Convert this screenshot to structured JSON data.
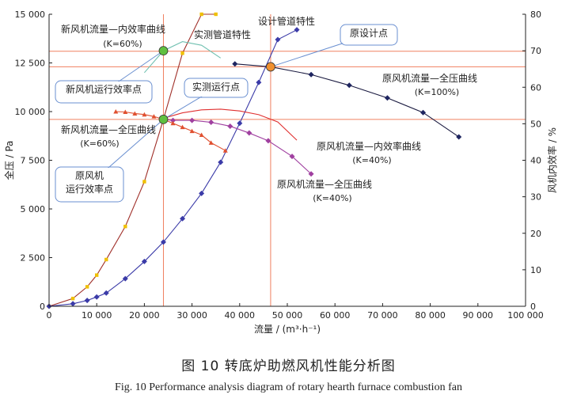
{
  "chart_data": {
    "type": "line",
    "title": "转底炉助燃风机性能分析图",
    "caption_cn": "图 10    转底炉助燃风机性能分析图",
    "caption_en": "Fig. 10    Performance analysis diagram of rotary hearth furnace combustion fan",
    "xlabel": "流量 / (m³·h⁻¹)",
    "ylabel_left": "全压 / Pa",
    "ylabel_right": "风机内效率 / %",
    "xlim": [
      0,
      100000
    ],
    "ylim_left": [
      0,
      15000
    ],
    "ylim_right": [
      0,
      80
    ],
    "x_ticks": [
      0,
      10000,
      20000,
      30000,
      40000,
      50000,
      60000,
      70000,
      80000,
      90000,
      100000
    ],
    "x_tick_labels": [
      "0",
      "10 000",
      "20 000",
      "30 000",
      "40 000",
      "50 000",
      "60 000",
      "70 000",
      "80 000",
      "90 000",
      "100 000"
    ],
    "y_left_ticks": [
      0,
      2500,
      5000,
      7500,
      10000,
      12500,
      15000
    ],
    "y_left_tick_labels": [
      "0",
      "2 500",
      "5 000",
      "7 500",
      "10 000",
      "12 500",
      "15 000"
    ],
    "y_right_ticks": [
      0,
      10,
      20,
      30,
      40,
      50,
      60,
      70,
      80
    ],
    "y_right_tick_labels": [
      "0",
      "10",
      "20",
      "30",
      "40",
      "50",
      "60",
      "70",
      "80"
    ],
    "series": [
      {
        "name": "实测管道特性",
        "axis": "left",
        "color": "#a0302a",
        "marker": "square",
        "marker_color": "#f0c000",
        "x": [
          0,
          5000,
          8000,
          10000,
          12000,
          16000,
          20000,
          24000,
          28000,
          32000,
          35000
        ],
        "y": [
          0,
          400,
          1000,
          1600,
          2400,
          4100,
          6400,
          9600,
          13000,
          15000,
          15000
        ]
      },
      {
        "name": "设计管道特性",
        "axis": "left",
        "color": "#3b3ba8",
        "marker": "diamond",
        "marker_color": "#3b3ba8",
        "x": [
          0,
          5000,
          8000,
          10000,
          12000,
          16000,
          20000,
          24000,
          28000,
          32000,
          36000,
          40000,
          44000,
          48000,
          52000
        ],
        "y": [
          0,
          130,
          300,
          480,
          680,
          1420,
          2300,
          3300,
          4500,
          5800,
          7400,
          9400,
          11500,
          13700,
          14200
        ]
      },
      {
        "name": "原风机流量—全压曲线 (K=100%)",
        "axis": "left",
        "color": "#1a1a40",
        "marker": "diamond",
        "marker_color": "#1e2560",
        "x": [
          39000,
          46500,
          55000,
          63000,
          71000,
          78500,
          86000
        ],
        "y": [
          12450,
          12300,
          11900,
          11350,
          10700,
          9950,
          8700
        ]
      },
      {
        "name": "原风机流量—全压曲线 (K=40%)",
        "axis": "left",
        "color": "#a040a0",
        "marker": "diamond",
        "marker_color": "#a040a0",
        "x": [
          24000,
          26000,
          30000,
          34000,
          38000,
          42000,
          46000,
          51000,
          55000
        ],
        "y": [
          9600,
          9550,
          9550,
          9450,
          9250,
          8900,
          8500,
          7700,
          6800
        ]
      },
      {
        "name": "新风机流量—全压曲线 (K=60%)",
        "axis": "left",
        "color": "#e05030",
        "marker": "triangle",
        "marker_color": "#e05030",
        "x": [
          14000,
          16000,
          18000,
          20000,
          22000,
          24000,
          26000,
          28000,
          30000,
          32000,
          34000,
          37000
        ],
        "y": [
          10000,
          9980,
          9900,
          9850,
          9750,
          9600,
          9400,
          9200,
          9000,
          8800,
          8400,
          8000
        ]
      },
      {
        "name": "原风机流量—内效率曲线 (K=40%)",
        "axis": "right",
        "color": "#e03030",
        "marker": "none",
        "marker_color": "#e03030",
        "x": [
          24000,
          28000,
          32000,
          36000,
          40000,
          44000,
          48000,
          52000
        ],
        "y": [
          51.5,
          53,
          53.8,
          54,
          53.5,
          52.5,
          50.5,
          45.5
        ]
      },
      {
        "name": "新风机流量—内效率曲线 (K=60%)",
        "axis": "right",
        "color": "#70c0b0",
        "marker": "none",
        "marker_color": "#70c0b0",
        "x": [
          20000,
          24000,
          28000,
          32000,
          36000
        ],
        "y": [
          64,
          70,
          72.5,
          71.5,
          68
        ]
      }
    ],
    "reference_lines": [
      {
        "axis": "left",
        "y": 13100,
        "color": "#f08060"
      },
      {
        "axis": "left",
        "y": 12300,
        "color": "#f08060"
      },
      {
        "axis": "left",
        "y": 9600,
        "color": "#f08060"
      },
      {
        "axis": "x",
        "x": 24000,
        "color": "#f08060"
      },
      {
        "axis": "x",
        "x": 46500,
        "color": "#f08060"
      }
    ],
    "operating_points": [
      {
        "name": "原设计点",
        "x": 46500,
        "y_left": 12300,
        "color": "#f09030"
      },
      {
        "name": "实测运行点",
        "x": 24000,
        "y_left": 9600,
        "color": "#60c040"
      },
      {
        "name": "新风机运行效率点",
        "x": 24000,
        "y_right": 70,
        "color": "#60c040"
      }
    ],
    "annotations": {
      "design_curve": "设计管道特性",
      "measured_curve": "实测管道特性",
      "new_eff_title": "新风机流量—内效率曲线",
      "new_eff_k": "(K=60%)",
      "design_point": "原设计点",
      "measured_point": "实测运行点",
      "new_eff_point": "新风机运行效率点",
      "new_pressure_title": "新风机流量—全压曲线",
      "new_pressure_k": "(K=60%)",
      "old_pressure100_title": "原风机流量—全压曲线",
      "old_pressure100_k": "(K=100%)",
      "old_eff_title": "原风机流量—内效率曲线",
      "old_eff_k": "(K=40%)",
      "old_pressure40_title": "原风机流量—全压曲线",
      "old_pressure40_k": "(K=40%)",
      "old_fan_line1": "原风机",
      "old_fan_line2": "运行效率点"
    }
  }
}
